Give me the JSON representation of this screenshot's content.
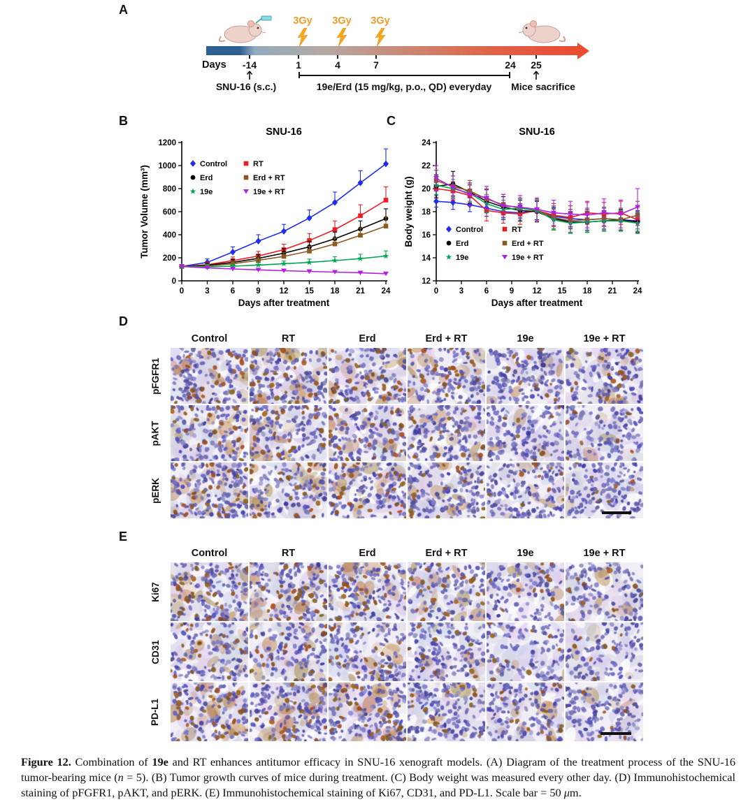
{
  "figure": {
    "caption_segments": [
      {
        "text": "Figure 12. ",
        "bold": true
      },
      {
        "text": "Combination of "
      },
      {
        "text": "19e",
        "bold": true
      },
      {
        "text": " and RT enhances antitumor efficacy in SNU-16 xenograft models. (A) Diagram of the treatment process of the SNU-16 tumor-bearing mice ("
      },
      {
        "text": "n",
        "italic": true
      },
      {
        "text": " = 5). (B) Tumor growth curves of mice during treatment. (C) Body weight was measured every other day. (D) Immunohistochemical staining of pFGFR1, pAKT, and pERK. (E) Immunohistochemical staining of Ki67, CD31, and PD-L1. Scale bar = 50 "
      },
      {
        "text": "μ",
        "italic": true
      },
      {
        "text": "m."
      }
    ]
  },
  "panelA": {
    "label": "A",
    "radiation_doses": [
      "3Gy",
      "3Gy",
      "3Gy"
    ],
    "days_label": "Days",
    "tick_labels": [
      "-14",
      "1",
      "4",
      "7",
      "24",
      "25"
    ],
    "injection_label": "SNU-16 (s.c.)",
    "treatment_label": "19e/Erd (15 mg/kg, p.o., QD) everyday",
    "sacrifice_label": "Mice sacrifice"
  },
  "panelB": {
    "label": "B"
  },
  "panelC": {
    "label": "C"
  },
  "panelD": {
    "label": "D",
    "columns": [
      "Control",
      "RT",
      "Erd",
      "Erd + RT",
      "19e",
      "19e + RT"
    ],
    "rows": [
      "pFGFR1",
      "pAKT",
      "pERK"
    ],
    "stain_intensity": [
      [
        0.45,
        0.55,
        0.5,
        0.45,
        0.18,
        0.35
      ],
      [
        0.4,
        0.38,
        0.45,
        0.28,
        0.12,
        0.12
      ],
      [
        0.5,
        0.42,
        0.48,
        0.32,
        0.18,
        0.12
      ]
    ]
  },
  "panelE": {
    "label": "E",
    "columns": [
      "Control",
      "RT",
      "Erd",
      "Erd + RT",
      "19e",
      "19e + RT"
    ],
    "rows": [
      "Ki67",
      "CD31",
      "PD-L1"
    ],
    "stain_intensity": [
      [
        0.55,
        0.55,
        0.5,
        0.4,
        0.22,
        0.18
      ],
      [
        0.38,
        0.32,
        0.38,
        0.22,
        0.16,
        0.12
      ],
      [
        0.6,
        0.5,
        0.55,
        0.25,
        0.32,
        0.12
      ]
    ]
  },
  "chart_data": [
    {
      "id": "tumor_volume",
      "type": "line",
      "title": "SNU-16",
      "xlabel": "Days after treatment",
      "ylabel": "Tumor Volume (mm³)",
      "x": [
        0,
        3,
        6,
        9,
        12,
        15,
        18,
        21,
        24
      ],
      "xlim": [
        0,
        24
      ],
      "xtick_step": 3,
      "ylim": [
        0,
        1200
      ],
      "ytick_step": 200,
      "legend_position": "top-left",
      "series": [
        {
          "name": "Control",
          "color": "#1f2bf0",
          "marker": "diamond",
          "values": [
            125,
            160,
            250,
            345,
            430,
            545,
            680,
            850,
            1015
          ],
          "errors": [
            15,
            30,
            45,
            55,
            60,
            70,
            90,
            105,
            130
          ]
        },
        {
          "name": "RT",
          "color": "#ec1c24",
          "marker": "square",
          "values": [
            125,
            140,
            175,
            215,
            270,
            350,
            445,
            565,
            700
          ],
          "errors": [
            15,
            22,
            32,
            40,
            48,
            60,
            75,
            95,
            115
          ]
        },
        {
          "name": "Erd",
          "color": "#000000",
          "marker": "circle",
          "values": [
            125,
            135,
            160,
            195,
            240,
            295,
            365,
            450,
            540
          ],
          "errors": [
            15,
            20,
            26,
            33,
            40,
            48,
            58,
            70,
            85
          ]
        },
        {
          "name": "Erd + RT",
          "color": "#8a5a20",
          "marker": "square",
          "values": [
            125,
            128,
            148,
            178,
            212,
            258,
            320,
            395,
            475
          ],
          "errors": [
            14,
            18,
            23,
            28,
            34,
            42,
            52,
            64,
            78
          ]
        },
        {
          "name": "19e",
          "color": "#00a651",
          "marker": "star",
          "values": [
            125,
            122,
            127,
            137,
            148,
            160,
            176,
            193,
            215
          ],
          "errors": [
            14,
            15,
            17,
            20,
            24,
            28,
            33,
            38,
            45
          ]
        },
        {
          "name": "19e + RT",
          "color": "#b21fe0",
          "marker": "triangle-down",
          "values": [
            125,
            113,
            103,
            95,
            88,
            82,
            76,
            70,
            62
          ],
          "errors": [
            13,
            12,
            12,
            11,
            11,
            10,
            10,
            10,
            10
          ]
        }
      ]
    },
    {
      "id": "body_weight",
      "type": "line",
      "title": "SNU-16",
      "xlabel": "Days after treatment",
      "ylabel": "Body weight (g)",
      "x": [
        0,
        2,
        4,
        6,
        8,
        10,
        12,
        14,
        16,
        18,
        20,
        22,
        24
      ],
      "xlim": [
        0,
        24
      ],
      "xtick_step": 3,
      "ylim": [
        12,
        24
      ],
      "ytick_step": 2,
      "legend_position": "bottom-left",
      "series": [
        {
          "name": "Control",
          "color": "#1f2bf0",
          "marker": "diamond",
          "values": [
            18.9,
            18.8,
            18.6,
            18.3,
            18.0,
            17.9,
            18.1,
            17.6,
            17.4,
            17.3,
            17.4,
            17.3,
            17.2
          ],
          "errors": [
            0.5,
            0.6,
            0.6,
            0.7,
            0.7,
            0.7,
            0.8,
            0.8,
            0.8,
            0.9,
            0.9,
            0.9,
            0.9
          ]
        },
        {
          "name": "RT",
          "color": "#ec1c24",
          "marker": "square",
          "values": [
            20.0,
            19.8,
            19.4,
            18.1,
            17.9,
            17.8,
            18.1,
            17.7,
            17.5,
            17.9,
            17.8,
            17.9,
            17.3
          ],
          "errors": [
            0.8,
            0.8,
            0.9,
            0.9,
            0.9,
            0.9,
            1.0,
            1.0,
            1.0,
            1.0,
            1.0,
            1.0,
            1.1
          ]
        },
        {
          "name": "Erd",
          "color": "#000000",
          "marker": "circle",
          "values": [
            20.2,
            20.4,
            19.7,
            18.9,
            18.4,
            18.1,
            18.0,
            17.4,
            17.1,
            17.1,
            17.2,
            17.3,
            17.1
          ],
          "errors": [
            1.0,
            1.1,
            1.0,
            1.0,
            0.9,
            0.9,
            0.9,
            0.9,
            0.9,
            0.9,
            0.9,
            0.9,
            0.9
          ]
        },
        {
          "name": "Erd + RT",
          "color": "#8a5a20",
          "marker": "square",
          "values": [
            20.7,
            20.2,
            19.8,
            19.1,
            18.6,
            18.3,
            18.1,
            17.5,
            17.2,
            17.3,
            17.4,
            17.3,
            17.7
          ],
          "errors": [
            0.9,
            0.9,
            0.9,
            0.9,
            0.9,
            0.9,
            1.0,
            1.0,
            1.0,
            1.0,
            1.0,
            1.0,
            1.2
          ]
        },
        {
          "name": "19e",
          "color": "#00a651",
          "marker": "star",
          "values": [
            20.3,
            20.0,
            19.6,
            18.7,
            18.2,
            18.3,
            18.1,
            17.3,
            17.0,
            17.1,
            17.2,
            17.2,
            17.0
          ],
          "errors": [
            0.8,
            0.8,
            0.8,
            0.8,
            0.8,
            0.8,
            0.9,
            0.9,
            0.9,
            0.9,
            0.9,
            0.9,
            0.9
          ]
        },
        {
          "name": "19e + RT",
          "color": "#b21fe0",
          "marker": "triangle-down",
          "values": [
            20.9,
            20.1,
            19.5,
            19.2,
            18.5,
            18.4,
            18.2,
            17.9,
            17.8,
            17.7,
            17.9,
            17.8,
            18.4
          ],
          "errors": [
            1.1,
            1.0,
            1.0,
            1.0,
            1.0,
            1.0,
            1.0,
            1.1,
            1.1,
            1.1,
            1.2,
            1.2,
            1.6
          ]
        }
      ]
    }
  ]
}
